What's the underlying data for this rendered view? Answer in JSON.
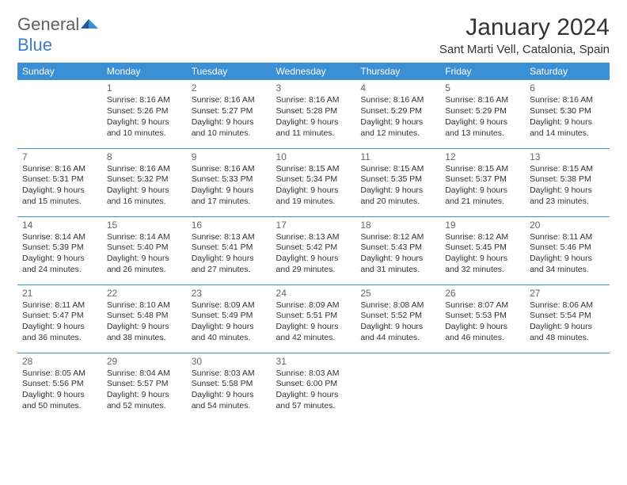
{
  "logo": {
    "text1": "General",
    "text2": "Blue"
  },
  "title": "January 2024",
  "location": "Sant Marti Vell, Catalonia, Spain",
  "colors": {
    "header_bg": "#3b8fd4",
    "header_text": "#ffffff",
    "row_border": "#3b8fd4",
    "daynum": "#666666",
    "body_text": "#333333",
    "logo_gray": "#606060",
    "logo_blue": "#3b7fc4"
  },
  "weekdays": [
    "Sunday",
    "Monday",
    "Tuesday",
    "Wednesday",
    "Thursday",
    "Friday",
    "Saturday"
  ],
  "weeks": [
    [
      null,
      {
        "n": "1",
        "sr": "Sunrise: 8:16 AM",
        "ss": "Sunset: 5:26 PM",
        "d1": "Daylight: 9 hours",
        "d2": "and 10 minutes."
      },
      {
        "n": "2",
        "sr": "Sunrise: 8:16 AM",
        "ss": "Sunset: 5:27 PM",
        "d1": "Daylight: 9 hours",
        "d2": "and 10 minutes."
      },
      {
        "n": "3",
        "sr": "Sunrise: 8:16 AM",
        "ss": "Sunset: 5:28 PM",
        "d1": "Daylight: 9 hours",
        "d2": "and 11 minutes."
      },
      {
        "n": "4",
        "sr": "Sunrise: 8:16 AM",
        "ss": "Sunset: 5:29 PM",
        "d1": "Daylight: 9 hours",
        "d2": "and 12 minutes."
      },
      {
        "n": "5",
        "sr": "Sunrise: 8:16 AM",
        "ss": "Sunset: 5:29 PM",
        "d1": "Daylight: 9 hours",
        "d2": "and 13 minutes."
      },
      {
        "n": "6",
        "sr": "Sunrise: 8:16 AM",
        "ss": "Sunset: 5:30 PM",
        "d1": "Daylight: 9 hours",
        "d2": "and 14 minutes."
      }
    ],
    [
      {
        "n": "7",
        "sr": "Sunrise: 8:16 AM",
        "ss": "Sunset: 5:31 PM",
        "d1": "Daylight: 9 hours",
        "d2": "and 15 minutes."
      },
      {
        "n": "8",
        "sr": "Sunrise: 8:16 AM",
        "ss": "Sunset: 5:32 PM",
        "d1": "Daylight: 9 hours",
        "d2": "and 16 minutes."
      },
      {
        "n": "9",
        "sr": "Sunrise: 8:16 AM",
        "ss": "Sunset: 5:33 PM",
        "d1": "Daylight: 9 hours",
        "d2": "and 17 minutes."
      },
      {
        "n": "10",
        "sr": "Sunrise: 8:15 AM",
        "ss": "Sunset: 5:34 PM",
        "d1": "Daylight: 9 hours",
        "d2": "and 19 minutes."
      },
      {
        "n": "11",
        "sr": "Sunrise: 8:15 AM",
        "ss": "Sunset: 5:35 PM",
        "d1": "Daylight: 9 hours",
        "d2": "and 20 minutes."
      },
      {
        "n": "12",
        "sr": "Sunrise: 8:15 AM",
        "ss": "Sunset: 5:37 PM",
        "d1": "Daylight: 9 hours",
        "d2": "and 21 minutes."
      },
      {
        "n": "13",
        "sr": "Sunrise: 8:15 AM",
        "ss": "Sunset: 5:38 PM",
        "d1": "Daylight: 9 hours",
        "d2": "and 23 minutes."
      }
    ],
    [
      {
        "n": "14",
        "sr": "Sunrise: 8:14 AM",
        "ss": "Sunset: 5:39 PM",
        "d1": "Daylight: 9 hours",
        "d2": "and 24 minutes."
      },
      {
        "n": "15",
        "sr": "Sunrise: 8:14 AM",
        "ss": "Sunset: 5:40 PM",
        "d1": "Daylight: 9 hours",
        "d2": "and 26 minutes."
      },
      {
        "n": "16",
        "sr": "Sunrise: 8:13 AM",
        "ss": "Sunset: 5:41 PM",
        "d1": "Daylight: 9 hours",
        "d2": "and 27 minutes."
      },
      {
        "n": "17",
        "sr": "Sunrise: 8:13 AM",
        "ss": "Sunset: 5:42 PM",
        "d1": "Daylight: 9 hours",
        "d2": "and 29 minutes."
      },
      {
        "n": "18",
        "sr": "Sunrise: 8:12 AM",
        "ss": "Sunset: 5:43 PM",
        "d1": "Daylight: 9 hours",
        "d2": "and 31 minutes."
      },
      {
        "n": "19",
        "sr": "Sunrise: 8:12 AM",
        "ss": "Sunset: 5:45 PM",
        "d1": "Daylight: 9 hours",
        "d2": "and 32 minutes."
      },
      {
        "n": "20",
        "sr": "Sunrise: 8:11 AM",
        "ss": "Sunset: 5:46 PM",
        "d1": "Daylight: 9 hours",
        "d2": "and 34 minutes."
      }
    ],
    [
      {
        "n": "21",
        "sr": "Sunrise: 8:11 AM",
        "ss": "Sunset: 5:47 PM",
        "d1": "Daylight: 9 hours",
        "d2": "and 36 minutes."
      },
      {
        "n": "22",
        "sr": "Sunrise: 8:10 AM",
        "ss": "Sunset: 5:48 PM",
        "d1": "Daylight: 9 hours",
        "d2": "and 38 minutes."
      },
      {
        "n": "23",
        "sr": "Sunrise: 8:09 AM",
        "ss": "Sunset: 5:49 PM",
        "d1": "Daylight: 9 hours",
        "d2": "and 40 minutes."
      },
      {
        "n": "24",
        "sr": "Sunrise: 8:09 AM",
        "ss": "Sunset: 5:51 PM",
        "d1": "Daylight: 9 hours",
        "d2": "and 42 minutes."
      },
      {
        "n": "25",
        "sr": "Sunrise: 8:08 AM",
        "ss": "Sunset: 5:52 PM",
        "d1": "Daylight: 9 hours",
        "d2": "and 44 minutes."
      },
      {
        "n": "26",
        "sr": "Sunrise: 8:07 AM",
        "ss": "Sunset: 5:53 PM",
        "d1": "Daylight: 9 hours",
        "d2": "and 46 minutes."
      },
      {
        "n": "27",
        "sr": "Sunrise: 8:06 AM",
        "ss": "Sunset: 5:54 PM",
        "d1": "Daylight: 9 hours",
        "d2": "and 48 minutes."
      }
    ],
    [
      {
        "n": "28",
        "sr": "Sunrise: 8:05 AM",
        "ss": "Sunset: 5:56 PM",
        "d1": "Daylight: 9 hours",
        "d2": "and 50 minutes."
      },
      {
        "n": "29",
        "sr": "Sunrise: 8:04 AM",
        "ss": "Sunset: 5:57 PM",
        "d1": "Daylight: 9 hours",
        "d2": "and 52 minutes."
      },
      {
        "n": "30",
        "sr": "Sunrise: 8:03 AM",
        "ss": "Sunset: 5:58 PM",
        "d1": "Daylight: 9 hours",
        "d2": "and 54 minutes."
      },
      {
        "n": "31",
        "sr": "Sunrise: 8:03 AM",
        "ss": "Sunset: 6:00 PM",
        "d1": "Daylight: 9 hours",
        "d2": "and 57 minutes."
      },
      null,
      null,
      null
    ]
  ]
}
